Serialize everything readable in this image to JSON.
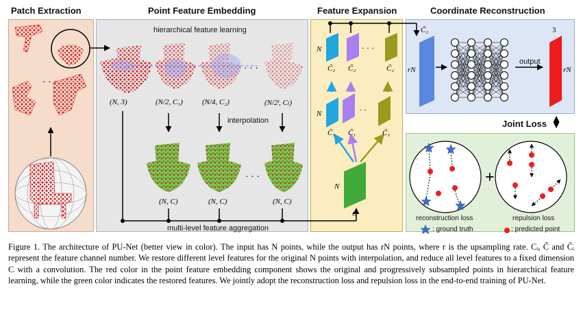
{
  "sections": {
    "patch_extraction": "Patch Extraction",
    "point_feature_embedding": "Point Feature Embedding",
    "feature_expansion": "Feature Expansion",
    "coordinate_reconstruction": "Coordinate Reconstruction",
    "joint_loss": "Joint Loss"
  },
  "embedding": {
    "hierarchical": "hierarchical feature learning",
    "interpolation": "interpolation",
    "aggregation": "multi-level feature aggregation",
    "dots": "· · ·",
    "labels_top": [
      "(N, 3)",
      "(N/2, C₁)",
      "(N/4, C₂)",
      "(N/2ˡ, Cₗ)"
    ],
    "labels_bottom": [
      "(N, C)",
      "(N, C)",
      "(N, C)"
    ]
  },
  "expansion": {
    "n_label": "N",
    "c2": "C̃₂",
    "c1": "C̃₁",
    "c": "C̃"
  },
  "reconstruction": {
    "c2": "C̃₂",
    "rN": "rN",
    "output": "output",
    "three": "3"
  },
  "loss": {
    "reconstruction": "reconstruction loss",
    "repulsion": "repulsion loss",
    "ground_truth": ": ground truth",
    "predicted": ": predicted point",
    "plus": "+"
  },
  "caption": "Figure 1. The architecture of PU-Net (better view in color). The input has N points, while the output has rN points, where r is the upsampling rate. Cᵢ, C̃ and C̃ᵢ represent the feature channel number. We restore different level features for the original N points with interpolation, and reduce all level features to a fixed dimension C with a convolution. The red color in the point feature embedding component shows the original and progressively subsampled points in hierarchical feature learning, while the green color indicates the restored features. We jointly adopt the reconstruction loss and repulsion loss in the end-to-end training of PU-Net.",
  "colors": {
    "patch_bg": "#f6dccb",
    "embed_bg": "#e6e6e6",
    "expand_bg": "#fbedc0",
    "recon_bg": "#dce6f5",
    "loss_bg": "#e2f0da",
    "point_red": "#e0262a",
    "point_green": "#5dc94a",
    "cyan": "#22a6e0",
    "purple": "#a87ef0",
    "olive": "#9a9a1c",
    "green": "#3faa3a",
    "blue_layer": "#5b86e0"
  }
}
